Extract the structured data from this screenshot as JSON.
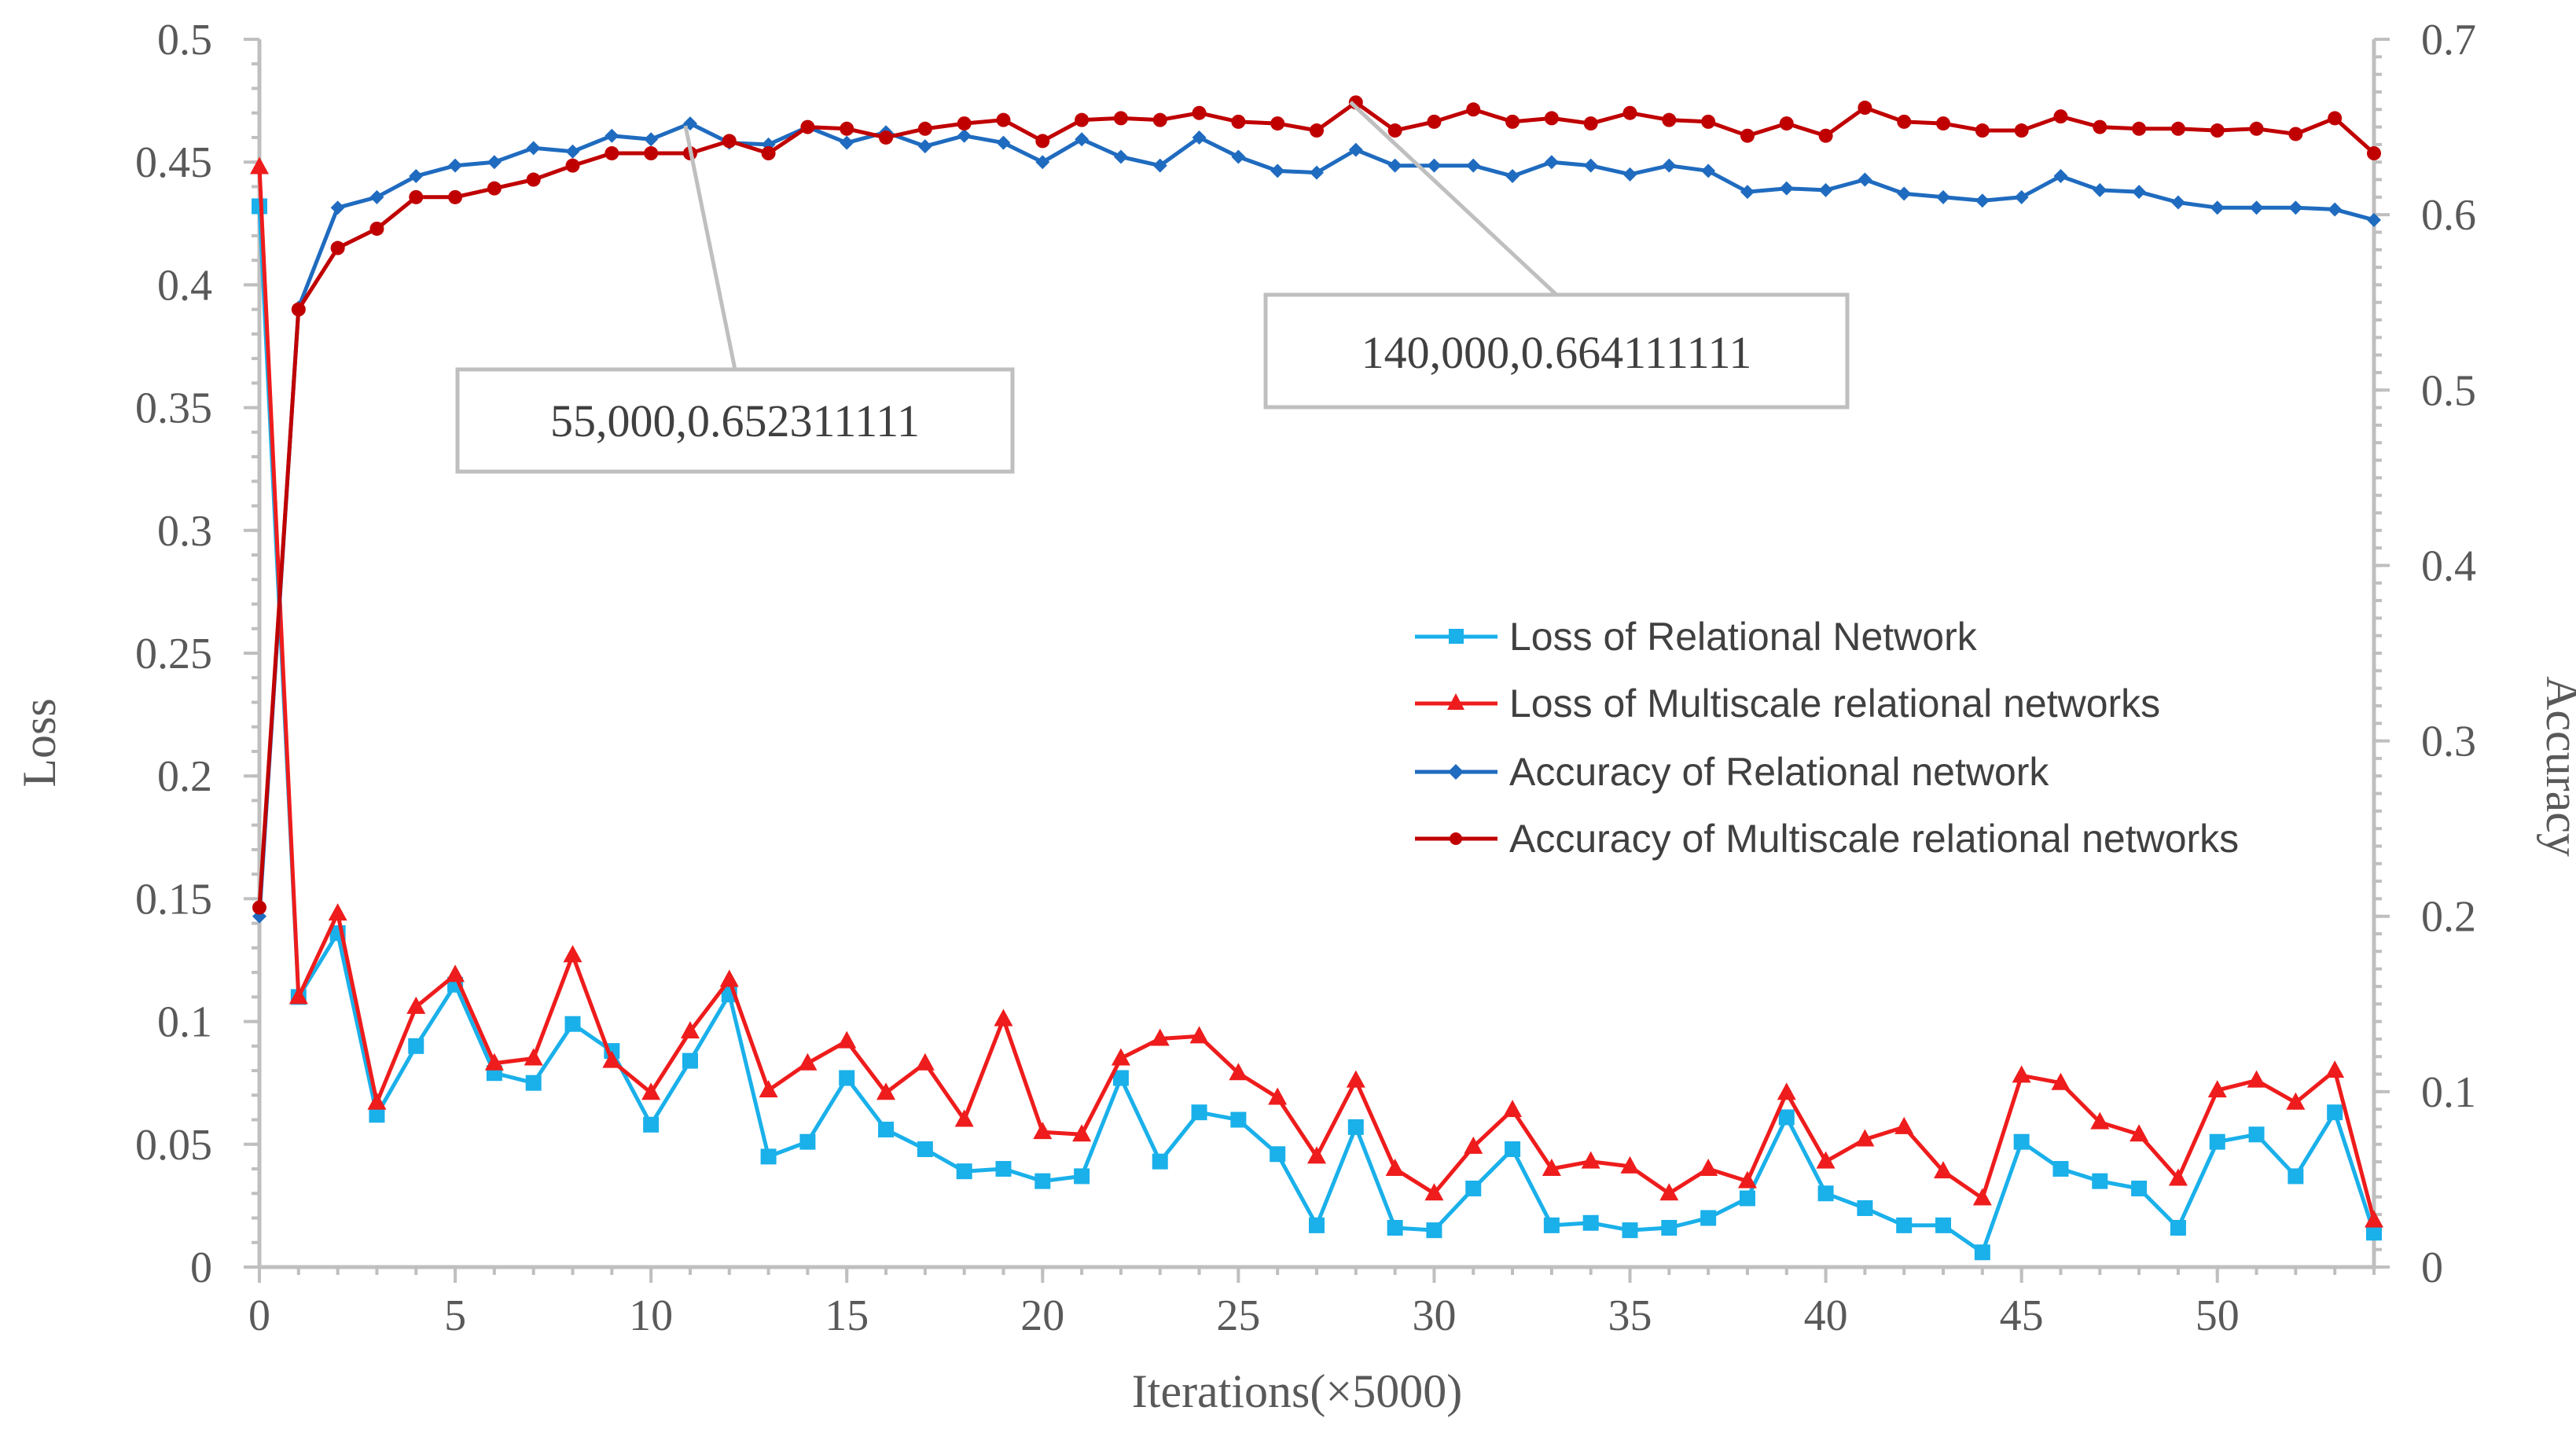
{
  "chart_data": {
    "type": "line",
    "title": "",
    "xlabel": "Iterations(×5000)",
    "ylabel_left": "Loss",
    "ylabel_right": "Accuracy",
    "xlim": [
      0,
      54
    ],
    "ylim_left": [
      0,
      0.5
    ],
    "ylim_right": [
      0,
      0.7
    ],
    "x_ticks": [
      "0",
      "5",
      "10",
      "15",
      "20",
      "25",
      "30",
      "35",
      "40",
      "45",
      "50"
    ],
    "y_left_ticks": [
      "0",
      "0.05",
      "0.1",
      "0.15",
      "0.2",
      "0.25",
      "0.3",
      "0.35",
      "0.4",
      "0.45",
      "0.5"
    ],
    "y_right_ticks": [
      "0",
      "0.1",
      "0.2",
      "0.3",
      "0.4",
      "0.5",
      "0.6",
      "0.7"
    ],
    "legend_position": "center-right",
    "series": [
      {
        "name": "Loss of Relational Network",
        "axis": "left",
        "color": "#1ab0ea",
        "marker": "square",
        "values": [
          0.432,
          0.11,
          0.136,
          0.062,
          0.09,
          0.115,
          0.079,
          0.075,
          0.099,
          0.088,
          0.058,
          0.084,
          0.111,
          0.045,
          0.051,
          0.077,
          0.056,
          0.048,
          0.039,
          0.04,
          0.035,
          0.037,
          0.077,
          0.043,
          0.063,
          0.06,
          0.046,
          0.017,
          0.057,
          0.016,
          0.015,
          0.032,
          0.048,
          0.017,
          0.018,
          0.015,
          0.016,
          0.02,
          0.028,
          0.061,
          0.03,
          0.024,
          0.017,
          0.017,
          0.006,
          0.051,
          0.04,
          0.035,
          0.032,
          0.016,
          0.051,
          0.054,
          0.037,
          0.063,
          0.014
        ]
      },
      {
        "name": "Loss of Multiscale relational networks",
        "axis": "left",
        "color": "#ee1c1c",
        "marker": "triangle",
        "values": [
          0.448,
          0.11,
          0.144,
          0.067,
          0.106,
          0.119,
          0.083,
          0.085,
          0.127,
          0.084,
          0.071,
          0.096,
          0.117,
          0.072,
          0.083,
          0.092,
          0.071,
          0.083,
          0.06,
          0.101,
          0.055,
          0.054,
          0.085,
          0.093,
          0.094,
          0.079,
          0.069,
          0.045,
          0.076,
          0.04,
          0.03,
          0.049,
          0.064,
          0.04,
          0.043,
          0.041,
          0.03,
          0.04,
          0.035,
          0.071,
          0.043,
          0.052,
          0.057,
          0.039,
          0.028,
          0.078,
          0.075,
          0.059,
          0.054,
          0.036,
          0.072,
          0.076,
          0.067,
          0.08,
          0.019
        ]
      },
      {
        "name": "Accuracy of Relational network",
        "axis": "right",
        "color": "#1f6bbf",
        "marker": "diamond",
        "values": [
          0.2,
          0.547,
          0.604,
          0.61,
          0.622,
          0.628,
          0.63,
          0.638,
          0.636,
          0.645,
          0.643,
          0.652,
          0.641,
          0.64,
          0.65,
          0.641,
          0.647,
          0.639,
          0.645,
          0.641,
          0.63,
          0.643,
          0.633,
          0.628,
          0.644,
          0.633,
          0.625,
          0.624,
          0.637,
          0.628,
          0.628,
          0.628,
          0.622,
          0.63,
          0.628,
          0.623,
          0.628,
          0.625,
          0.613,
          0.615,
          0.614,
          0.62,
          0.612,
          0.61,
          0.608,
          0.61,
          0.622,
          0.614,
          0.613,
          0.607,
          0.604,
          0.604,
          0.604,
          0.603,
          0.597
        ]
      },
      {
        "name": "Accuracy of Multiscale relational networks",
        "axis": "right",
        "color": "#c00000",
        "marker": "circle",
        "values": [
          0.205,
          0.546,
          0.581,
          0.592,
          0.61,
          0.61,
          0.615,
          0.62,
          0.628,
          0.635,
          0.635,
          0.635,
          0.642,
          0.635,
          0.65,
          0.649,
          0.644,
          0.649,
          0.652,
          0.654,
          0.642,
          0.654,
          0.655,
          0.654,
          0.658,
          0.653,
          0.652,
          0.648,
          0.664,
          0.648,
          0.653,
          0.66,
          0.653,
          0.655,
          0.652,
          0.658,
          0.654,
          0.653,
          0.645,
          0.652,
          0.645,
          0.661,
          0.653,
          0.652,
          0.648,
          0.648,
          0.656,
          0.65,
          0.649,
          0.649,
          0.648,
          0.649,
          0.646,
          0.655,
          0.635
        ]
      }
    ],
    "annotations": [
      {
        "text": "55,000,0.652311111",
        "series": "Accuracy of Relational network",
        "x": 11,
        "y": 0.652311111
      },
      {
        "text": "140,000,0.664111111",
        "series": "Accuracy of Multiscale relational networks",
        "x": 28,
        "y": 0.664111111
      }
    ]
  }
}
